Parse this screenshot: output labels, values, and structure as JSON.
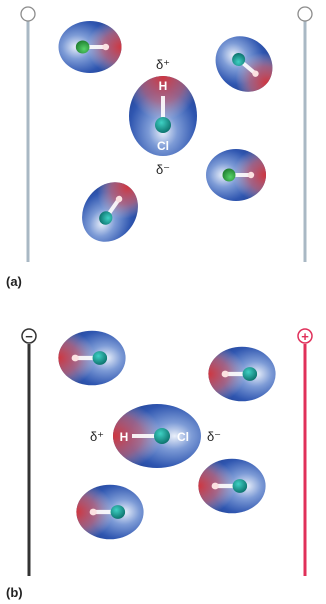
{
  "panel_a": {
    "label": "(a)",
    "featured_molecule": {
      "hydrogen_label": "H",
      "chlorine_label": "Cl",
      "partial_positive": "δ⁺",
      "partial_negative": "δ⁻"
    }
  },
  "panel_b": {
    "label": "(b)",
    "negative_plate_sign": "−",
    "positive_plate_sign": "+",
    "featured_molecule": {
      "hydrogen_label": "H",
      "chlorine_label": "Cl",
      "partial_positive": "δ⁺",
      "partial_negative": "δ⁻"
    }
  },
  "colors": {
    "neutral_plate": "#a9b8c4",
    "negative_plate": "#333333",
    "positive_plate": "#e0305a",
    "electron_rich": "#2f56b0",
    "electron_poor": "#d8343a",
    "chlorine_atom": "#0f8e87",
    "hydrogen_atom": "#f3f3f3"
  }
}
